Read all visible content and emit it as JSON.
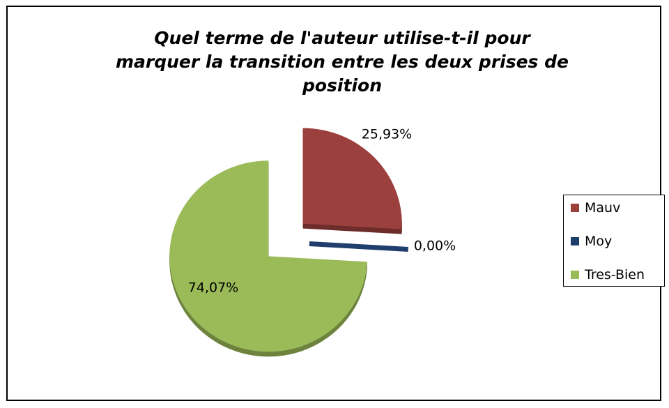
{
  "chart_data": {
    "type": "pie",
    "title": "Quel terme de l'auteur utilise-t-il pour marquer la transition entre les deux prises de position",
    "categories": [
      "Mauv",
      "Moy",
      "Tres-Bien"
    ],
    "values": [
      25.93,
      0,
      74.07
    ],
    "value_labels": [
      "25,93%",
      "0,00%",
      "74,07%"
    ],
    "colors": [
      "#9c403e",
      "#1f3e6c",
      "#9bbb59"
    ],
    "legend": "right"
  }
}
